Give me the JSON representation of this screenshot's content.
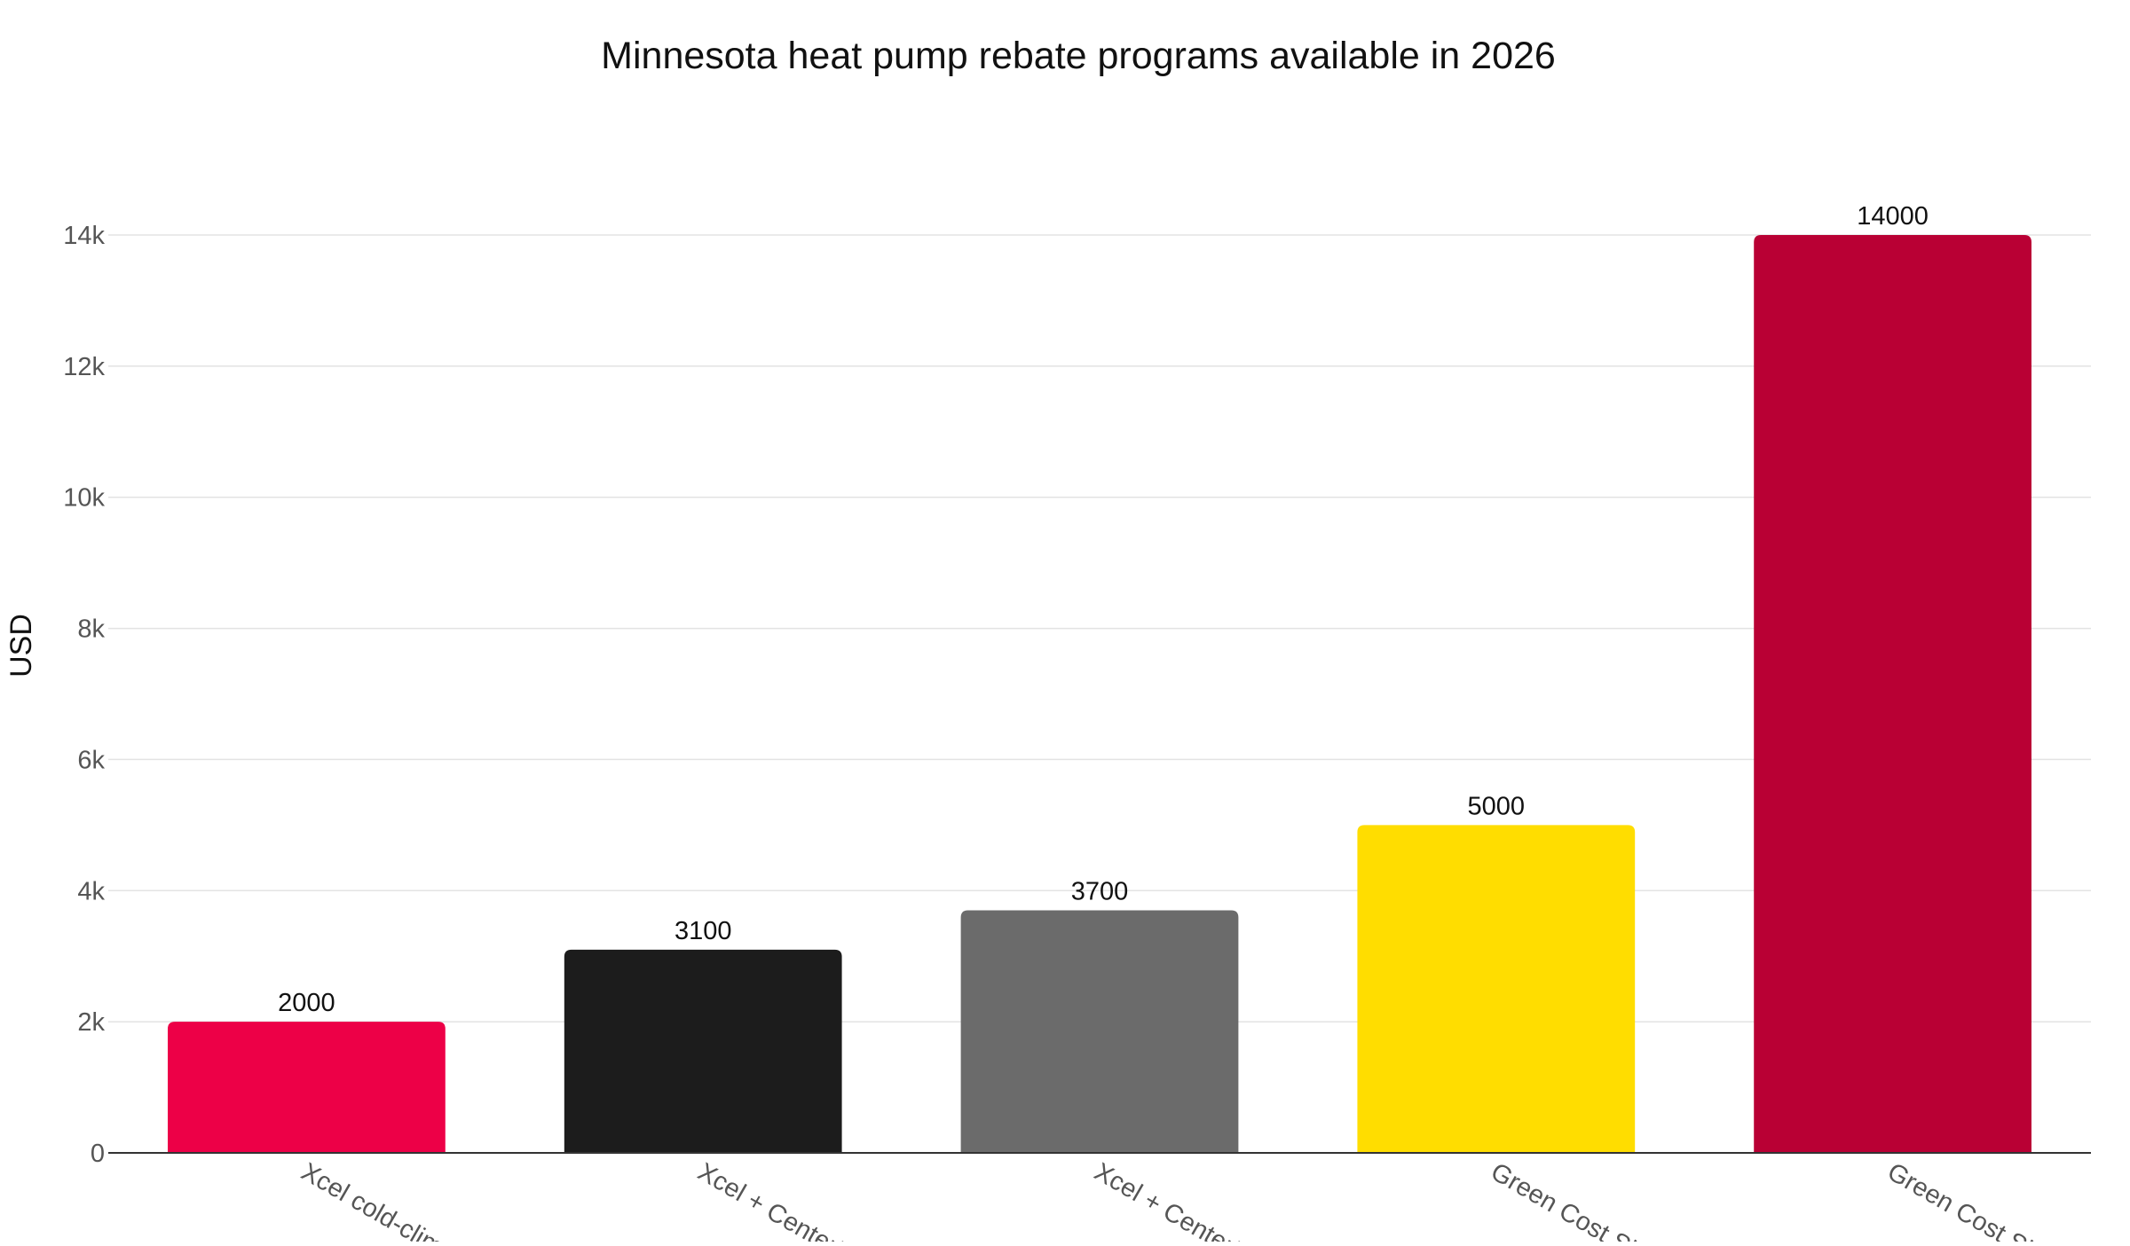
{
  "chart_data": {
    "type": "bar",
    "title": "Minnesota heat pump rebate programs available in 2026",
    "xlabel": "",
    "ylabel": "USD",
    "ylim": [
      0,
      15000
    ],
    "yticks": [
      0,
      2000,
      4000,
      6000,
      8000,
      10000,
      12000,
      14000
    ],
    "ytick_labels": [
      "0",
      "2k",
      "4k",
      "6k",
      "8k",
      "10k",
      "12k",
      "14k"
    ],
    "grid": true,
    "legend": "none",
    "categories": [
      "Xcel cold-clima",
      "Xcel + CenterP",
      "Xcel + CenterP",
      "Green Cost Sha",
      "Green Cost Sha"
    ],
    "values": [
      2000,
      3100,
      3700,
      5000,
      14000
    ],
    "data_labels": [
      "2000",
      "3100",
      "3700",
      "5000",
      "14000"
    ],
    "colors": [
      "#ED0047",
      "#1C1C1C",
      "#6B6B6B",
      "#FFDD00",
      "#B90034"
    ]
  }
}
